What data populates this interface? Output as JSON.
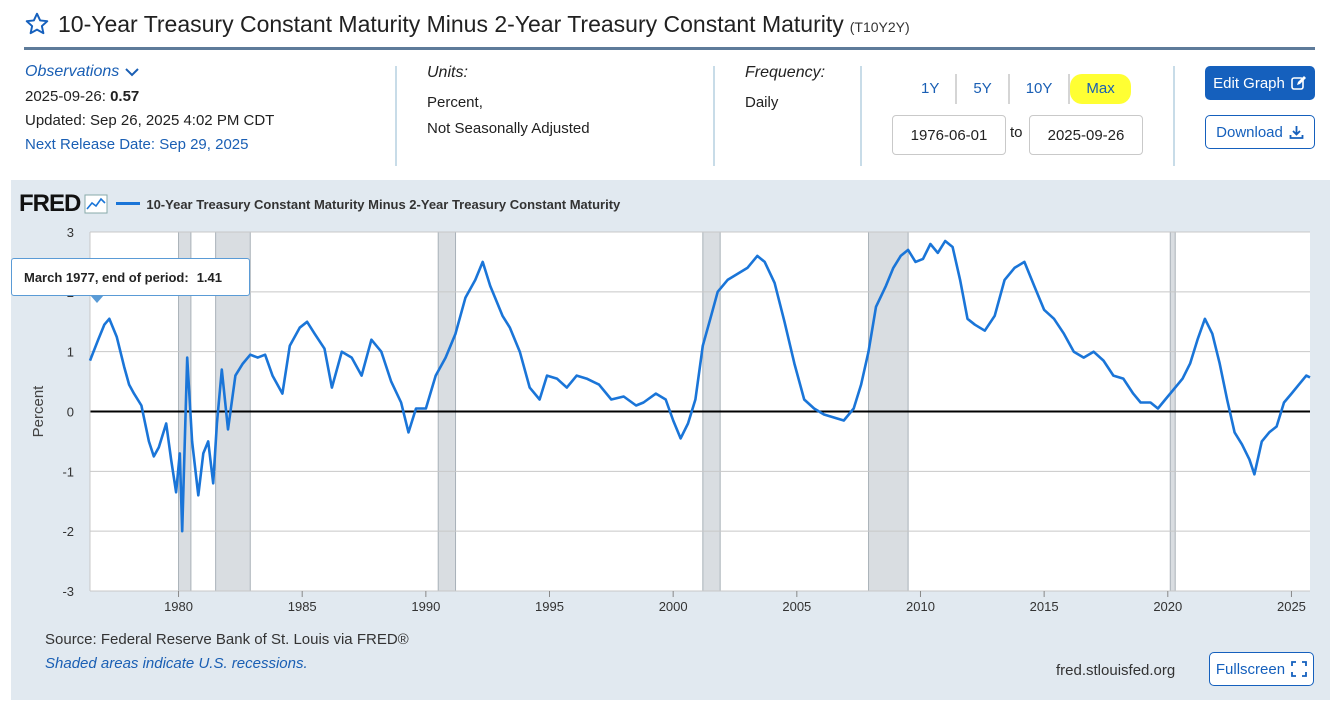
{
  "header": {
    "title": "10-Year Treasury Constant Maturity Minus 2-Year Treasury Constant Maturity",
    "series_id": "(T10Y2Y)"
  },
  "observations": {
    "label": "Observations",
    "date": "2025-09-26:",
    "value": "0.57",
    "updated": "Updated: Sep 26, 2025 4:02 PM CDT",
    "next_release": "Next Release Date: Sep 29, 2025"
  },
  "units": {
    "label": "Units:",
    "line1": "Percent,",
    "line2": "Not Seasonally Adjusted"
  },
  "frequency": {
    "label": "Frequency:",
    "value": "Daily"
  },
  "ranges": [
    "1Y",
    "5Y",
    "10Y",
    "Max"
  ],
  "date_range": {
    "start": "1976-06-01",
    "to": "to",
    "end": "2025-09-26"
  },
  "buttons": {
    "edit": "Edit Graph",
    "download": "Download",
    "fullscreen": "Fullscreen"
  },
  "footer": {
    "source": "Source: Federal Reserve Bank of St. Louis via FRED®",
    "shaded": "Shaded areas indicate U.S. recessions.",
    "site": "fred.stlouisfed.org"
  },
  "tooltip": {
    "label": "March 1977, end of period:",
    "value": "1.41"
  },
  "colors": {
    "line": "#1a75d8",
    "recession": "#d9dde1",
    "accent": "#1560bd",
    "highlight": "#ffff33"
  },
  "chart_data": {
    "type": "line",
    "brand": "FRED",
    "legend": "10-Year Treasury Constant Maturity Minus 2-Year Treasury Constant Maturity",
    "ylabel": "Percent",
    "xlabel": "",
    "xlim": [
      1976.42,
      2025.75
    ],
    "ylim": [
      -3,
      3
    ],
    "y_ticks": [
      -3,
      -2,
      -1,
      0,
      1,
      2,
      3
    ],
    "x_ticks": [
      1980,
      1985,
      1990,
      1995,
      2000,
      2005,
      2010,
      2015,
      2020,
      2025
    ],
    "recessions": [
      [
        1980.0,
        1980.5
      ],
      [
        1981.5,
        1982.9
      ],
      [
        1990.5,
        1991.2
      ],
      [
        2001.2,
        2001.9
      ],
      [
        2007.9,
        2009.5
      ],
      [
        2020.1,
        2020.3
      ]
    ],
    "series": [
      {
        "name": "T10Y2Y",
        "x": [
          1976.42,
          1976.75,
          1977.0,
          1977.2,
          1977.5,
          1977.8,
          1978.0,
          1978.2,
          1978.5,
          1978.8,
          1979.0,
          1979.2,
          1979.5,
          1979.7,
          1979.9,
          1980.05,
          1980.15,
          1980.35,
          1980.55,
          1980.8,
          1981.0,
          1981.2,
          1981.4,
          1981.55,
          1981.75,
          1982.0,
          1982.3,
          1982.6,
          1982.9,
          1983.2,
          1983.5,
          1983.8,
          1984.2,
          1984.5,
          1984.9,
          1985.2,
          1985.5,
          1985.9,
          1986.2,
          1986.6,
          1987.0,
          1987.4,
          1987.8,
          1988.2,
          1988.6,
          1989.0,
          1989.3,
          1989.6,
          1990.0,
          1990.4,
          1990.8,
          1991.2,
          1991.6,
          1992.0,
          1992.3,
          1992.6,
          1992.8,
          1993.1,
          1993.4,
          1993.8,
          1994.2,
          1994.6,
          1994.9,
          1995.3,
          1995.7,
          1996.1,
          1996.5,
          1997.0,
          1997.5,
          1998.0,
          1998.5,
          1998.8,
          1999.3,
          1999.7,
          2000.0,
          2000.3,
          2000.6,
          2000.9,
          2001.2,
          2001.5,
          2001.8,
          2002.2,
          2002.6,
          2003.0,
          2003.4,
          2003.7,
          2004.1,
          2004.5,
          2004.9,
          2005.3,
          2005.7,
          2006.1,
          2006.5,
          2006.9,
          2007.3,
          2007.6,
          2007.9,
          2008.2,
          2008.6,
          2008.9,
          2009.2,
          2009.5,
          2009.8,
          2010.1,
          2010.4,
          2010.7,
          2011.0,
          2011.3,
          2011.6,
          2011.9,
          2012.2,
          2012.6,
          2013.0,
          2013.4,
          2013.8,
          2014.2,
          2014.6,
          2015.0,
          2015.4,
          2015.8,
          2016.2,
          2016.6,
          2017.0,
          2017.4,
          2017.8,
          2018.2,
          2018.6,
          2018.9,
          2019.3,
          2019.6,
          2019.9,
          2020.3,
          2020.6,
          2020.9,
          2021.2,
          2021.5,
          2021.8,
          2022.1,
          2022.4,
          2022.7,
          2023.0,
          2023.3,
          2023.5,
          2023.8,
          2024.1,
          2024.4,
          2024.7,
          2025.0,
          2025.3,
          2025.6,
          2025.75
        ],
        "values": [
          0.85,
          1.2,
          1.45,
          1.55,
          1.25,
          0.75,
          0.45,
          0.3,
          0.1,
          -0.5,
          -0.75,
          -0.6,
          -0.2,
          -0.8,
          -1.35,
          -0.7,
          -2.0,
          0.9,
          -0.5,
          -1.4,
          -0.7,
          -0.5,
          -1.2,
          -0.2,
          0.7,
          -0.3,
          0.6,
          0.8,
          0.95,
          0.9,
          0.95,
          0.6,
          0.3,
          1.1,
          1.4,
          1.5,
          1.3,
          1.05,
          0.4,
          1.0,
          0.9,
          0.6,
          1.2,
          1.0,
          0.5,
          0.15,
          -0.35,
          0.05,
          0.05,
          0.6,
          0.9,
          1.3,
          1.9,
          2.2,
          2.5,
          2.1,
          1.9,
          1.6,
          1.4,
          1.0,
          0.4,
          0.2,
          0.6,
          0.55,
          0.4,
          0.6,
          0.55,
          0.45,
          0.2,
          0.25,
          0.1,
          0.15,
          0.3,
          0.2,
          -0.15,
          -0.45,
          -0.2,
          0.2,
          1.1,
          1.55,
          2.0,
          2.2,
          2.3,
          2.4,
          2.6,
          2.5,
          2.15,
          1.5,
          0.8,
          0.2,
          0.05,
          -0.05,
          -0.1,
          -0.15,
          0.05,
          0.45,
          1.0,
          1.75,
          2.1,
          2.4,
          2.6,
          2.7,
          2.5,
          2.55,
          2.8,
          2.65,
          2.85,
          2.75,
          2.2,
          1.55,
          1.45,
          1.35,
          1.6,
          2.2,
          2.4,
          2.5,
          2.1,
          1.7,
          1.55,
          1.3,
          1.0,
          0.9,
          1.0,
          0.85,
          0.6,
          0.55,
          0.3,
          0.15,
          0.15,
          0.05,
          0.2,
          0.4,
          0.55,
          0.8,
          1.2,
          1.55,
          1.3,
          0.8,
          0.2,
          -0.35,
          -0.55,
          -0.8,
          -1.05,
          -0.5,
          -0.35,
          -0.25,
          0.15,
          0.3,
          0.45,
          0.6,
          0.57
        ]
      }
    ]
  }
}
